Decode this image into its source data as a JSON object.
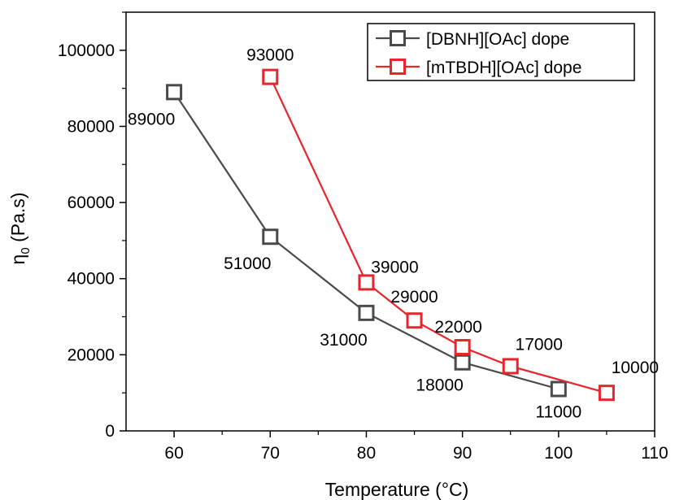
{
  "chart_data": {
    "type": "line",
    "xlabel": "Temperature (°C)",
    "ylabel_main": "η",
    "ylabel_sub": "0",
    "ylabel_units": " (Pa.s)",
    "xlim": [
      55,
      110
    ],
    "ylim": [
      0,
      110000
    ],
    "x_ticks": [
      60,
      70,
      80,
      90,
      100,
      110
    ],
    "y_ticks": [
      0,
      20000,
      40000,
      60000,
      80000,
      100000
    ],
    "grid": false,
    "legend_position": "top-right",
    "series": [
      {
        "name": "[DBNH][OAc] dope",
        "color": "#4a4a4a",
        "points": [
          {
            "x": 60,
            "y": 89000,
            "label": "89000"
          },
          {
            "x": 70,
            "y": 51000,
            "label": "51000"
          },
          {
            "x": 80,
            "y": 31000,
            "label": "31000"
          },
          {
            "x": 90,
            "y": 18000,
            "label": "18000"
          },
          {
            "x": 100,
            "y": 11000,
            "label": "11000"
          }
        ]
      },
      {
        "name": "[mTBDH][OAc] dope",
        "color": "#e8252b",
        "points": [
          {
            "x": 70,
            "y": 93000,
            "label": "93000"
          },
          {
            "x": 80,
            "y": 39000,
            "label": "39000"
          },
          {
            "x": 85,
            "y": 29000,
            "label": "29000"
          },
          {
            "x": 90,
            "y": 22000,
            "label": "22000"
          },
          {
            "x": 95,
            "y": 17000,
            "label": "17000"
          },
          {
            "x": 105,
            "y": 10000,
            "label": "10000"
          }
        ]
      }
    ]
  }
}
